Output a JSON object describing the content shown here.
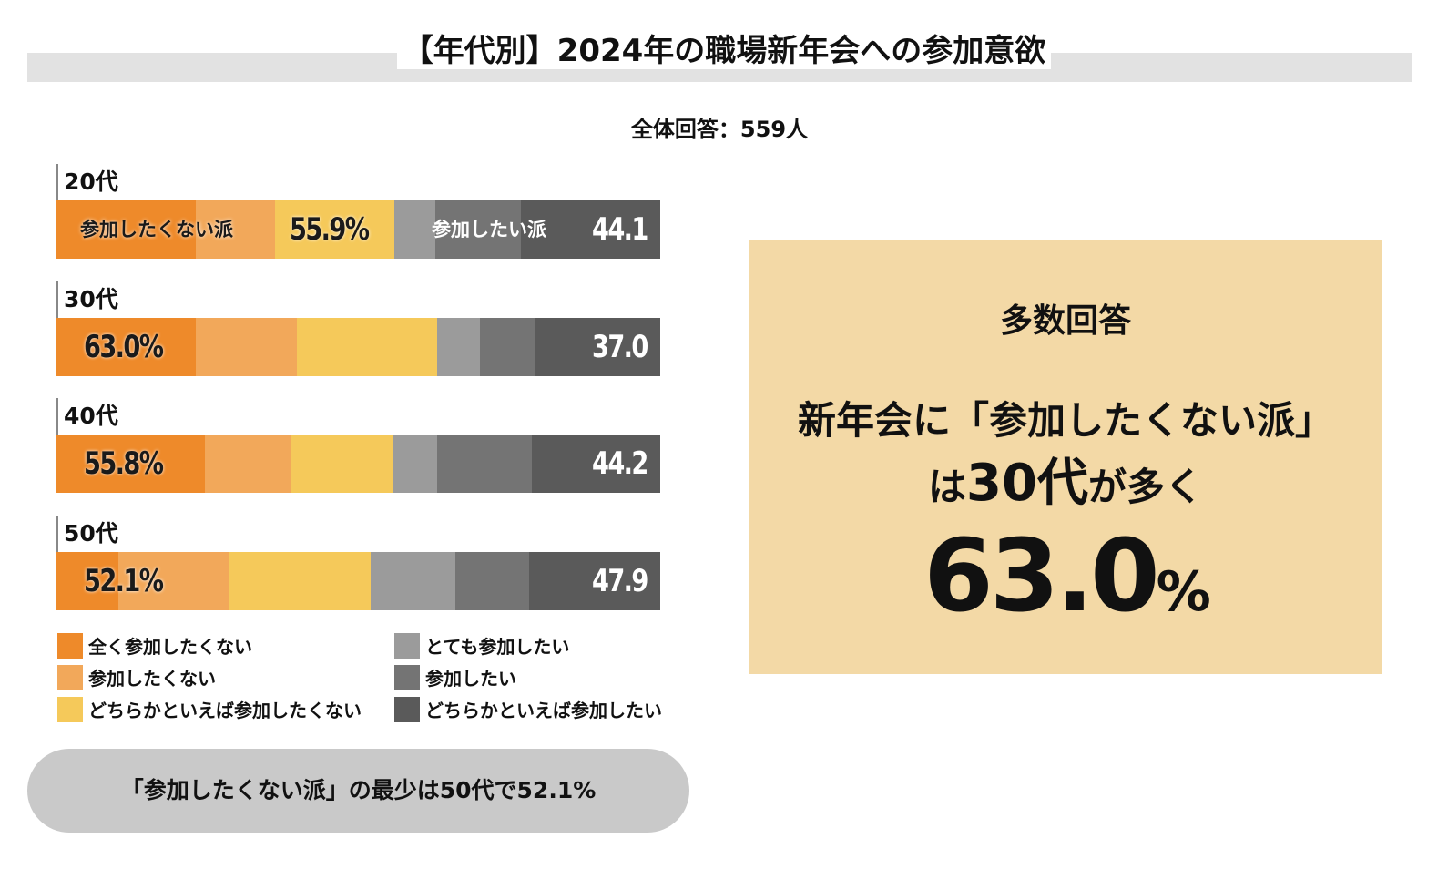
{
  "header": {
    "title": "【年代別】2024年の職場新年会への参加意欲",
    "subtitle": "全体回答：559人"
  },
  "colors": [
    "#ee8a2a",
    "#f2a85a",
    "#f5c95a",
    "#9b9b9b",
    "#747474",
    "#5a5a5a"
  ],
  "chart_data": {
    "type": "bar",
    "orientation": "horizontal-stacked-100",
    "categories": [
      "20代",
      "30代",
      "40代",
      "50代"
    ],
    "series": [
      {
        "name": "全く参加したくない",
        "values": [
          23.1,
          23.1,
          24.6,
          10.3
        ]
      },
      {
        "name": "参加したくない",
        "values": [
          13.1,
          16.7,
          14.3,
          18.4
        ]
      },
      {
        "name": "どちらかといえば参加したくない",
        "values": [
          19.7,
          23.2,
          16.9,
          23.4
        ]
      },
      {
        "name": "とても参加したい",
        "values": [
          6.8,
          7.2,
          7.2,
          14.0
        ]
      },
      {
        "name": "参加したい",
        "values": [
          14.2,
          9.0,
          15.8,
          12.2
        ]
      },
      {
        "name": "どちらかといえば参加したい",
        "values": [
          23.1,
          20.8,
          21.2,
          21.7
        ]
      }
    ],
    "negative_totals": [
      "55.9%",
      "63.0%",
      "55.8%",
      "52.1%"
    ],
    "positive_totals": [
      "44.1",
      "37.0",
      "44.2",
      "47.9"
    ],
    "negative_group_label": "参加したくない派",
    "positive_group_label": "参加したい派",
    "legend_position": "bottom"
  },
  "callout": {
    "heading": "多数回答",
    "line1": "新年会に「参加したくない派」",
    "line2_pre": "は",
    "line2_em": "30代",
    "line2_post": "が多く",
    "value": "63.0",
    "unit": "%"
  },
  "footer": {
    "note": "「参加したくない派」の最少は50代で52.1%"
  }
}
